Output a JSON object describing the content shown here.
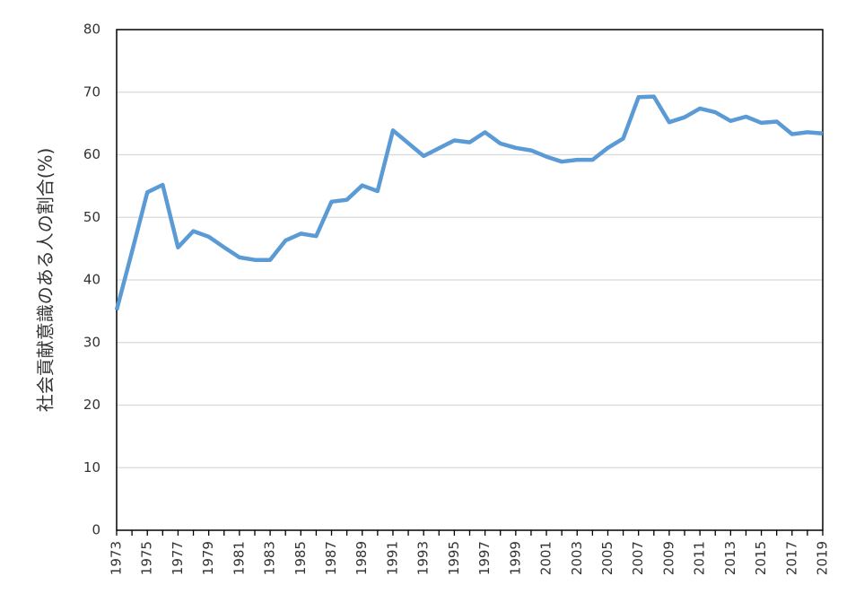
{
  "chart_data": {
    "type": "line",
    "title": "",
    "xlabel": "",
    "ylabel": "社会貢献意識のある人の割合(%)",
    "ylim": [
      0,
      80
    ],
    "yticks": [
      0,
      10,
      20,
      30,
      40,
      50,
      60,
      70,
      80
    ],
    "xlim": [
      1973,
      2019
    ],
    "xtick_labels": [
      "1973",
      "1975",
      "1977",
      "1979",
      "1981",
      "1983",
      "1985",
      "1987",
      "1989",
      "1991",
      "1993",
      "1995",
      "1997",
      "1999",
      "2001",
      "2003",
      "2005",
      "2007",
      "2009",
      "2011",
      "2013",
      "2015",
      "2017",
      "2019"
    ],
    "grid": "horizontal",
    "legend": "none",
    "series": [
      {
        "color": "#5B9BD5",
        "x": [
          1973,
          1974,
          1975,
          1976,
          1977,
          1978,
          1979,
          1980,
          1981,
          1982,
          1983,
          1984,
          1985,
          1986,
          1987,
          1988,
          1989,
          1990,
          1991,
          1993,
          1995,
          1996,
          1997,
          1998,
          1999,
          2000,
          2001,
          2002,
          2003,
          2004,
          2005,
          2006,
          2007,
          2008,
          2009,
          2010,
          2011,
          2012,
          2013,
          2014,
          2015,
          2016,
          2017,
          2018,
          2019
        ],
        "values": [
          35.2,
          44.5,
          54.0,
          55.2,
          45.2,
          47.8,
          46.9,
          45.2,
          43.6,
          43.2,
          43.2,
          46.3,
          47.4,
          47.0,
          52.5,
          52.8,
          55.1,
          54.2,
          63.9,
          59.8,
          62.3,
          62.0,
          63.6,
          61.8,
          61.1,
          60.7,
          59.7,
          58.9,
          59.2,
          59.2,
          61.1,
          62.6,
          69.2,
          69.3,
          65.2,
          66.0,
          67.4,
          66.8,
          65.4,
          66.1,
          65.1,
          65.3,
          63.3,
          63.6,
          63.4
        ]
      }
    ]
  }
}
